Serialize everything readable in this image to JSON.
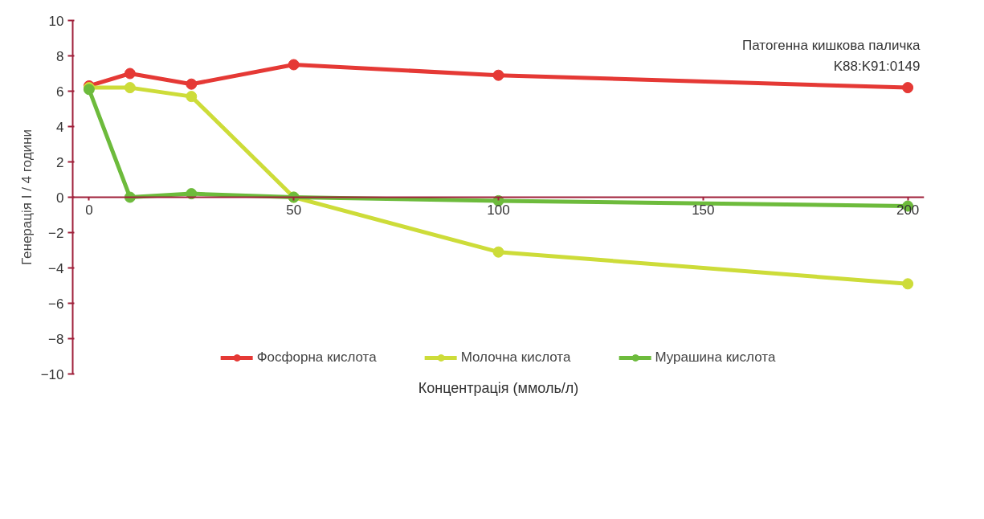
{
  "chart_data": {
    "type": "line",
    "xlabel": "Концентрація (ммоль/л)",
    "ylabel": "Генерація І / 4 години",
    "annotations": [
      "Патогенна кишкова паличка",
      "K88:K91:0149"
    ],
    "x": [
      0,
      10,
      25,
      50,
      100,
      200
    ],
    "series": [
      {
        "name": "Фосфорна кислота",
        "color": "#e53935",
        "values": [
          6.3,
          7.0,
          6.4,
          7.5,
          6.9,
          6.2
        ]
      },
      {
        "name": "Молочна кислота",
        "color": "#cddc39",
        "values": [
          6.2,
          6.2,
          5.7,
          0.0,
          -3.1,
          -4.9
        ]
      },
      {
        "name": "Мурашина кислота",
        "color": "#6dbb3c",
        "values": [
          6.1,
          0.0,
          0.2,
          0.0,
          -0.2,
          -0.5
        ]
      }
    ],
    "xlim": [
      -4,
      204
    ],
    "xticks": [
      0,
      50,
      100,
      150,
      200
    ],
    "ylim": [
      -10,
      10
    ],
    "yticks": [
      -10,
      -8,
      -6,
      -4,
      -2,
      0,
      2,
      4,
      6,
      8,
      10
    ],
    "grid": false,
    "legend": "bottom",
    "marker": "circle",
    "line_style": "solid"
  }
}
